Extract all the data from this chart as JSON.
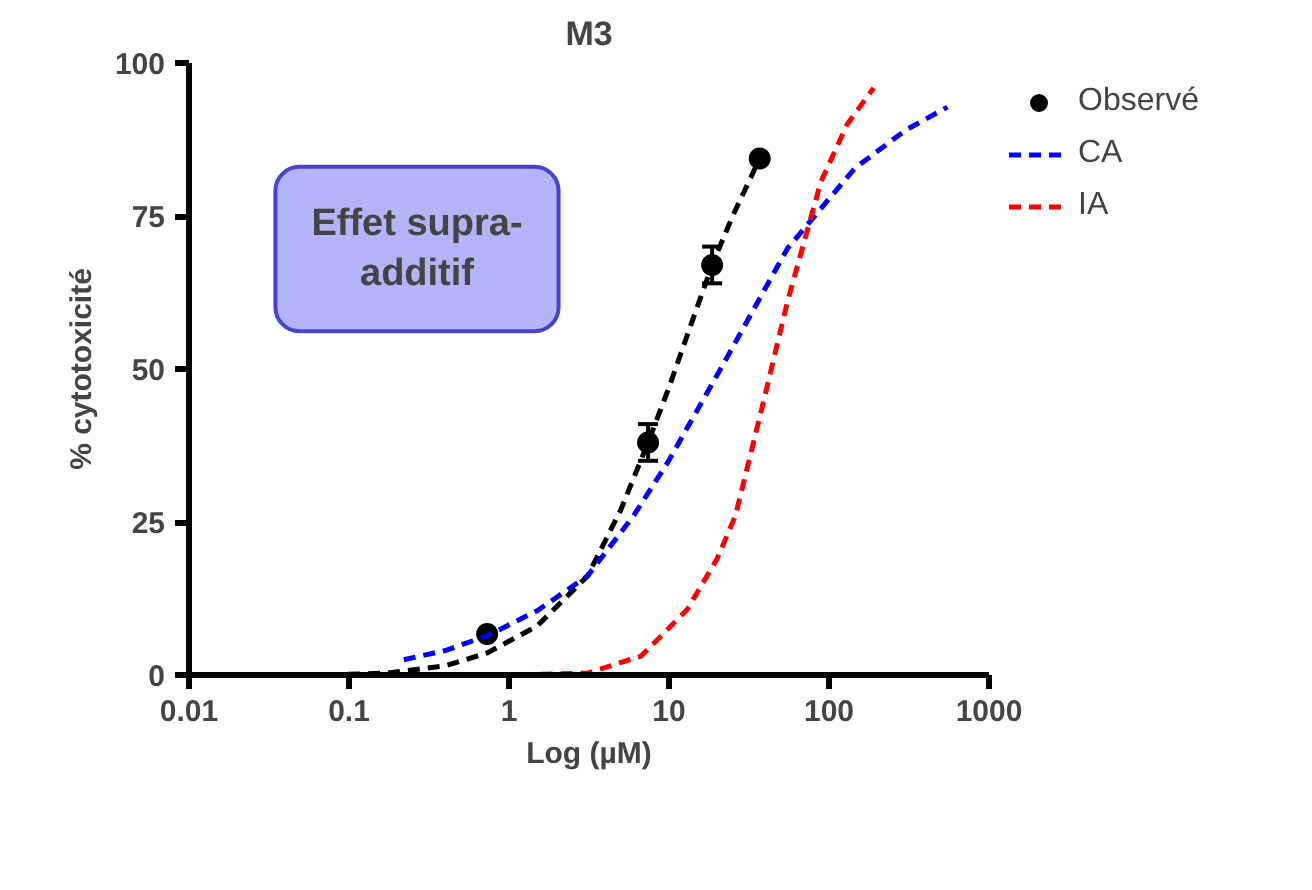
{
  "chart_data": {
    "type": "scatter",
    "title": "M3",
    "xlabel": "Log (µM)",
    "ylabel": "% cytotoxicité",
    "log": "x",
    "xlim": [
      0.01,
      1000
    ],
    "xticks": [
      0.01,
      0.1,
      1,
      10,
      100,
      1000
    ],
    "ylim": [
      0,
      100
    ],
    "yticks": [
      0,
      25,
      50,
      75,
      100
    ],
    "grid": false,
    "legend": "top right",
    "annotations": [
      "Effet supra-additif"
    ],
    "series": [
      {
        "name": "Observé",
        "marker": "circle",
        "color": "#000000",
        "x": [
          0.73,
          7.4,
          18.6,
          36.9
        ],
        "values": [
          6.7,
          38.0,
          67.0,
          84.4
        ],
        "errors": [
          null,
          3,
          3,
          null
        ]
      },
      {
        "type": "line",
        "color": "#000000",
        "line_style": "dashed",
        "x": [
          0.074,
          0.17,
          0.4,
          0.73,
          1.5,
          3.1,
          5,
          7.4,
          10,
          13,
          18.6,
          25,
          36.9
        ],
        "values": [
          0,
          0.3,
          1.5,
          3.6,
          8,
          16.2,
          27,
          38,
          47,
          55.5,
          67,
          75,
          84.4
        ]
      },
      {
        "name": "CA",
        "type": "line",
        "color": "#0000ff",
        "line_style": "dashed",
        "x": [
          0.22,
          0.4,
          0.73,
          1.5,
          3.1,
          6,
          9.8,
          21,
          55,
          145,
          300,
          550
        ],
        "values": [
          2.5,
          4,
          6.4,
          10.5,
          16.2,
          26,
          34.7,
          50,
          69.7,
          82.8,
          89,
          92.8
        ]
      },
      {
        "name": "IA",
        "type": "line",
        "color": "#ff0000",
        "line_style": "dashed",
        "x": [
          0.21,
          1,
          3.1,
          6.7,
          13,
          20,
          26,
          38,
          55,
          89,
          130,
          190
        ],
        "values": [
          0,
          0,
          0.3,
          3.1,
          10.7,
          19,
          26,
          43.5,
          61,
          80.6,
          90,
          95.9
        ]
      }
    ]
  }
}
